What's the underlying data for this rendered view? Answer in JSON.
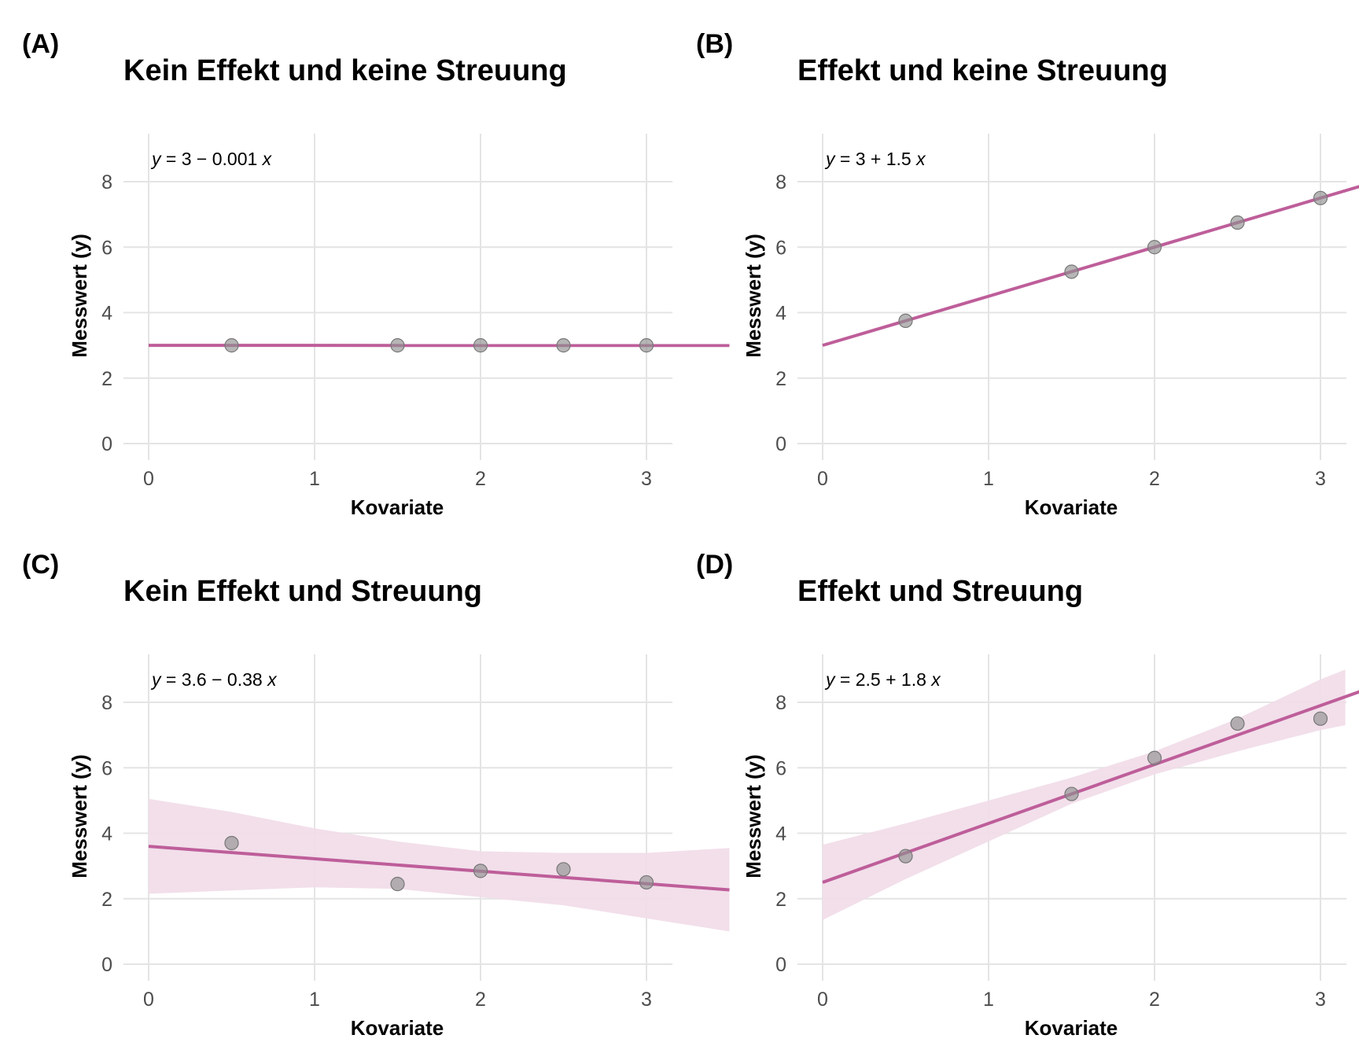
{
  "colors": {
    "line": "#be5e9a",
    "band": "#f1dbe8",
    "point": "#8f8f8f",
    "grid": "#e4e4e4",
    "tick_text": "#4d4d4d"
  },
  "chart_data": [
    {
      "type": "scatter",
      "tag": "(A)",
      "title": "Kein Effekt und keine Streuung",
      "xlabel": "Kovariate",
      "ylabel": "Messwert (y)",
      "equation": {
        "lhs": "y",
        "rhs": " = 3 − 0.001 ",
        "var": "x"
      },
      "xlim": [
        0,
        3.5
      ],
      "ylim": [
        0,
        8
      ],
      "xticks": [
        "0",
        "1",
        "2",
        "3"
      ],
      "yticks": [
        "0",
        "2",
        "4",
        "6",
        "8"
      ],
      "points": {
        "x": [
          0.5,
          1.5,
          2,
          2.5,
          3
        ],
        "y": [
          3,
          3,
          3,
          3,
          3
        ]
      },
      "fit": {
        "intercept": 3,
        "slope": -0.001,
        "x_range": [
          0,
          3.5
        ]
      },
      "band": null
    },
    {
      "type": "scatter",
      "tag": "(B)",
      "title": "Effekt und keine Streuung",
      "xlabel": "Kovariate",
      "ylabel": "Messwert (y)",
      "equation": {
        "lhs": "y",
        "rhs": " = 3 + 1.5 ",
        "var": "x"
      },
      "xlim": [
        0,
        3.5
      ],
      "ylim": [
        0,
        8
      ],
      "xticks": [
        "0",
        "1",
        "2",
        "3"
      ],
      "yticks": [
        "0",
        "2",
        "4",
        "6",
        "8"
      ],
      "points": {
        "x": [
          0.5,
          1.5,
          2,
          2.5,
          3
        ],
        "y": [
          3.75,
          5.25,
          6,
          6.75,
          7.5
        ]
      },
      "fit": {
        "intercept": 3,
        "slope": 1.5,
        "x_range": [
          0,
          3.5
        ]
      },
      "band": null
    },
    {
      "type": "scatter",
      "tag": "(C)",
      "title": "Kein Effekt und Streuung",
      "xlabel": "Kovariate",
      "ylabel": "Messwert (y)",
      "equation": {
        "lhs": "y",
        "rhs": " = 3.6 − 0.38 ",
        "var": "x"
      },
      "xlim": [
        0,
        3.5
      ],
      "ylim": [
        0,
        8
      ],
      "xticks": [
        "0",
        "1",
        "2",
        "3"
      ],
      "yticks": [
        "0",
        "2",
        "4",
        "6",
        "8"
      ],
      "points": {
        "x": [
          0.5,
          1.5,
          2,
          2.5,
          3
        ],
        "y": [
          3.7,
          2.45,
          2.85,
          2.9,
          2.5
        ]
      },
      "fit": {
        "intercept": 3.6,
        "slope": -0.38,
        "x_range": [
          0,
          3.5
        ]
      },
      "band": {
        "x": [
          0,
          0.5,
          1,
          1.5,
          2,
          2.5,
          3,
          3.5
        ],
        "lower": [
          2.15,
          2.25,
          2.35,
          2.3,
          2.05,
          1.8,
          1.4,
          1.0
        ],
        "upper": [
          5.05,
          4.65,
          4.15,
          3.75,
          3.45,
          3.4,
          3.4,
          3.55
        ]
      }
    },
    {
      "type": "scatter",
      "tag": "(D)",
      "title": "Effekt und Streuung",
      "xlabel": "Kovariate",
      "ylabel": "Messwert (y)",
      "equation": {
        "lhs": "y",
        "rhs": " = 2.5 + 1.8 ",
        "var": "x"
      },
      "xlim": [
        0,
        3.5
      ],
      "ylim": [
        0,
        8
      ],
      "xticks": [
        "0",
        "1",
        "2",
        "3"
      ],
      "yticks": [
        "0",
        "2",
        "4",
        "6",
        "8"
      ],
      "points": {
        "x": [
          0.5,
          1.5,
          2,
          2.5,
          3
        ],
        "y": [
          3.3,
          5.2,
          6.3,
          7.35,
          7.5
        ]
      },
      "fit": {
        "intercept": 2.5,
        "slope": 1.8,
        "x_range": [
          0,
          3.5
        ]
      },
      "band": {
        "x": [
          0,
          0.5,
          1,
          1.5,
          2,
          2.5,
          3,
          3.15
        ],
        "lower": [
          1.35,
          2.6,
          3.75,
          4.9,
          5.8,
          6.5,
          7.15,
          7.3
        ],
        "upper": [
          3.65,
          4.3,
          5.0,
          5.7,
          6.5,
          7.5,
          8.7,
          9.0
        ]
      }
    }
  ]
}
